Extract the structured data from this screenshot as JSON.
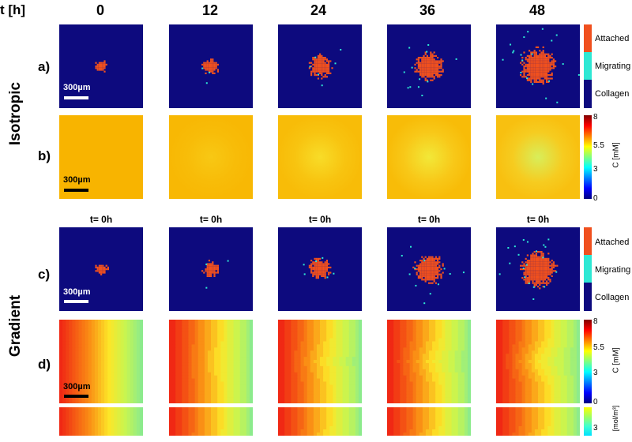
{
  "header": {
    "time_label": "t [h]",
    "times": [
      "0",
      "12",
      "24",
      "36",
      "48"
    ]
  },
  "rows": {
    "a": "a)",
    "b": "b)",
    "c": "c)",
    "d": "d)"
  },
  "side_labels": {
    "isotropic": "Isotropic",
    "gradient": "Gradient"
  },
  "gradient_subtitle": "t= 0h",
  "scalebar_label": "300µm",
  "cell_legend": {
    "items": [
      "Attached",
      "Migrating",
      "Collagen"
    ],
    "colors": {
      "attached": "#f0501e",
      "migrating": "#2ee8d4",
      "collagen": "#0d0a7e"
    }
  },
  "conc_colorbar": {
    "label": "C [mM]",
    "ticks": [
      "8",
      "5.5",
      "3",
      "0"
    ]
  },
  "bottom_colorbar": {
    "ticks": [
      "3"
    ],
    "unit": "[mol/m³]"
  },
  "colors": {
    "collagen_bg": "#0d0a7e",
    "attached": "#f0501e",
    "migrating": "#2ee8d4"
  }
}
